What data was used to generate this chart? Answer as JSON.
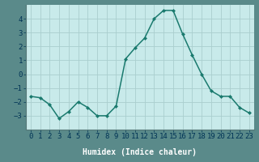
{
  "x": [
    0,
    1,
    2,
    3,
    4,
    5,
    6,
    7,
    8,
    9,
    10,
    11,
    12,
    13,
    14,
    15,
    16,
    17,
    18,
    19,
    20,
    21,
    22,
    23
  ],
  "y": [
    -1.6,
    -1.7,
    -2.2,
    -3.2,
    -2.7,
    -2.0,
    -2.4,
    -3.0,
    -3.0,
    -2.3,
    1.1,
    1.9,
    2.6,
    4.0,
    4.6,
    4.6,
    2.9,
    1.4,
    0.0,
    -1.2,
    -1.6,
    -1.6,
    -2.4,
    -2.8
  ],
  "line_color": "#1a7a6e",
  "marker": "D",
  "marker_size": 2.0,
  "linewidth": 1.1,
  "plot_bg_color": "#c8eaea",
  "fig_bg_color": "#5a8a8a",
  "xlabel_bg_color": "#4a7a7a",
  "grid_color": "#aacece",
  "xlabel": "Humidex (Indice chaleur)",
  "xlabel_fontsize": 7,
  "tick_label_fontsize": 6.5,
  "tick_label_color": "#003355",
  "ylim": [
    -4,
    5
  ],
  "xlim": [
    -0.5,
    23.5
  ],
  "yticks": [
    -3,
    -2,
    -1,
    0,
    1,
    2,
    3,
    4
  ],
  "xticks": [
    0,
    1,
    2,
    3,
    4,
    5,
    6,
    7,
    8,
    9,
    10,
    11,
    12,
    13,
    14,
    15,
    16,
    17,
    18,
    19,
    20,
    21,
    22,
    23
  ]
}
